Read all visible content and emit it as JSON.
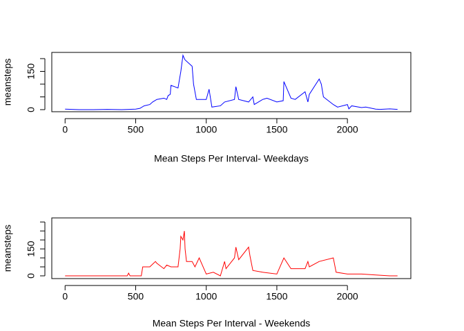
{
  "chart_data": [
    {
      "type": "line",
      "title": "Mean Steps Per Interval- Weekdays",
      "ylabel": "meansteps",
      "x": [
        0,
        100,
        200,
        300,
        400,
        500,
        530,
        560,
        600,
        620,
        650,
        700,
        720,
        730,
        745,
        750,
        800,
        820,
        835,
        845,
        850,
        900,
        910,
        930,
        1000,
        1020,
        1040,
        1100,
        1130,
        1200,
        1210,
        1230,
        1300,
        1330,
        1340,
        1400,
        1430,
        1500,
        1545,
        1550,
        1600,
        1630,
        1700,
        1720,
        1730,
        1800,
        1815,
        1830,
        1900,
        1930,
        2000,
        2010,
        2030,
        2100,
        2130,
        2200,
        2230,
        2300,
        2355
      ],
      "series": [
        {
          "name": "weekdays",
          "color": "#0000ff",
          "values": [
            2,
            0,
            0,
            1,
            0,
            2,
            5,
            15,
            20,
            30,
            40,
            45,
            40,
            55,
            60,
            95,
            85,
            150,
            213,
            200,
            195,
            170,
            100,
            40,
            40,
            80,
            10,
            15,
            30,
            40,
            90,
            40,
            30,
            50,
            20,
            40,
            45,
            30,
            35,
            110,
            45,
            40,
            70,
            30,
            60,
            120,
            100,
            50,
            20,
            10,
            20,
            3,
            15,
            8,
            10,
            2,
            1,
            3,
            1
          ]
        }
      ],
      "xlim": [
        -94.2,
        2449.2
      ],
      "ylim": [
        -8.1,
        224.3
      ],
      "xticks": [
        0,
        500,
        1000,
        1500,
        2000
      ],
      "yticks": [
        0,
        150
      ],
      "yminorticks": [
        50,
        100,
        200
      ]
    },
    {
      "type": "line",
      "title": "Mean Steps Per Interval - Weekends",
      "ylabel": "meansteps",
      "x": [
        0,
        100,
        200,
        300,
        400,
        440,
        450,
        460,
        500,
        540,
        550,
        600,
        640,
        650,
        700,
        720,
        750,
        800,
        815,
        820,
        835,
        845,
        850,
        860,
        900,
        920,
        950,
        1000,
        1050,
        1100,
        1130,
        1140,
        1200,
        1210,
        1230,
        1300,
        1310,
        1330,
        1400,
        1500,
        1550,
        1600,
        1700,
        1720,
        1730,
        1800,
        1900,
        1920,
        2000,
        2100,
        2200,
        2300,
        2355
      ],
      "series": [
        {
          "name": "weekends",
          "color": "#ff0000",
          "values": [
            0,
            0,
            0,
            0,
            0,
            0,
            15,
            0,
            0,
            0,
            50,
            50,
            80,
            70,
            40,
            60,
            50,
            50,
            150,
            220,
            200,
            250,
            150,
            80,
            80,
            50,
            100,
            10,
            20,
            0,
            80,
            40,
            100,
            160,
            90,
            160,
            110,
            30,
            20,
            10,
            100,
            40,
            40,
            80,
            50,
            80,
            100,
            20,
            10,
            10,
            5,
            0,
            0
          ]
        }
      ],
      "xlim": [
        -94.2,
        2449.2
      ],
      "ylim": [
        -15.4,
        323
      ],
      "xticks": [
        0,
        500,
        1000,
        1500,
        2000
      ],
      "yticks": [
        0,
        150
      ],
      "yminorticks": [
        50,
        100,
        200,
        250,
        300
      ]
    }
  ]
}
